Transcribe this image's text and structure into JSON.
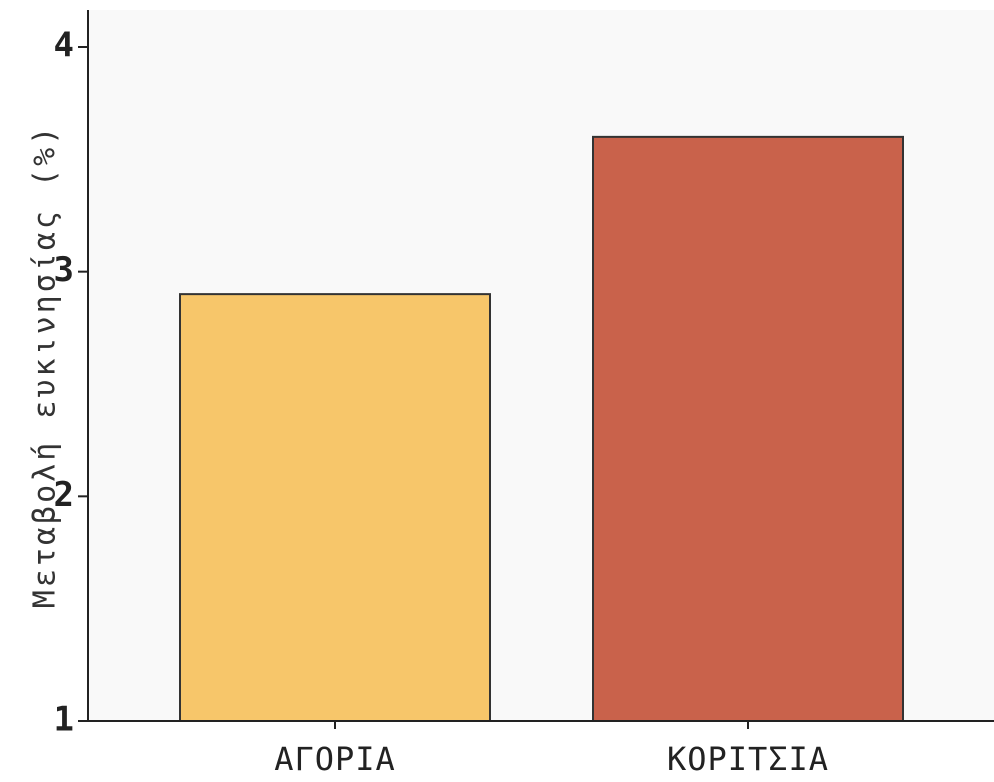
{
  "chart_data": {
    "type": "bar",
    "title": "",
    "xlabel": "",
    "ylabel": "Μεταβολή ευκινησίας (%)",
    "categories": [
      "ΑΓΟΡΙΑ",
      "ΚΟΡΙΤΣΙΑ"
    ],
    "values": [
      2.9,
      3.6
    ],
    "colors": [
      "#f7c66a",
      "#c9624b"
    ],
    "ylim": [
      1,
      4
    ],
    "yticks": [
      "1",
      "2",
      "3",
      "4"
    ],
    "grid": false,
    "legend": "none"
  }
}
